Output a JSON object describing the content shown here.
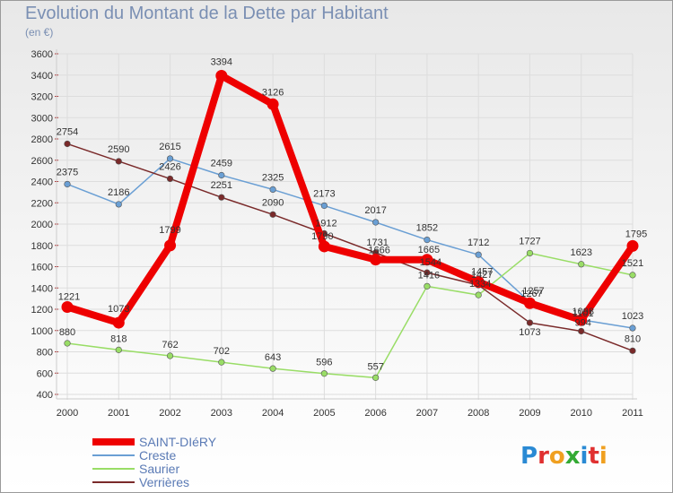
{
  "chart_data": {
    "type": "line",
    "title": "Evolution du Montant de la Dette par Habitant",
    "unit_label": "(en €)",
    "categories": [
      "2000",
      "2001",
      "2002",
      "2003",
      "2004",
      "2005",
      "2006",
      "2007",
      "2008",
      "2009",
      "2010",
      "2011"
    ],
    "ylim": [
      400,
      3600
    ],
    "yticks": [
      400,
      600,
      800,
      1000,
      1200,
      1400,
      1600,
      1800,
      2000,
      2200,
      2400,
      2600,
      2800,
      3000,
      3200,
      3400,
      3600
    ],
    "grid": true,
    "legend_position": "bottom-left",
    "series": [
      {
        "name": "SAINT-DIéRY",
        "color": "#ee0000",
        "bold": true,
        "values": [
          1221,
          1073,
          1799,
          3394,
          3126,
          1790,
          1666,
          1665,
          1457,
          1257,
          1098,
          1795
        ],
        "labels": [
          "1221",
          "1073",
          "1799",
          "3394",
          "3126",
          "1790",
          "1666",
          "1665",
          "1457",
          "1257",
          "1098",
          "1795"
        ]
      },
      {
        "name": "Creste",
        "color": "#6a9fd4",
        "bold": false,
        "values": [
          2375,
          2186,
          2615,
          2459,
          2325,
          2173,
          2017,
          1852,
          1712,
          1267,
          1101,
          1023
        ],
        "labels": [
          "2375",
          "2186",
          "2615",
          "2459",
          "2325",
          "2173",
          "2017",
          "1852",
          "1712",
          "1267",
          "1101",
          "1023"
        ]
      },
      {
        "name": "Saurier",
        "color": "#99dd66",
        "bold": false,
        "values": [
          880,
          818,
          762,
          702,
          643,
          596,
          557,
          1416,
          1334,
          1727,
          1623,
          1521
        ],
        "labels": [
          "880",
          "818",
          "762",
          "702",
          "643",
          "596",
          "557",
          "1416",
          "1334",
          "1727",
          "1623",
          "1521"
        ]
      },
      {
        "name": "Verrières",
        "color": "#7a2a2a",
        "bold": false,
        "values": [
          2754,
          2590,
          2426,
          2251,
          2090,
          1912,
          1731,
          1544,
          1427,
          1073,
          994,
          810
        ],
        "labels": [
          "2754",
          "2590",
          "2426",
          "2251",
          "2090",
          "1912",
          "1731",
          "1544",
          "1427",
          "1073",
          "994",
          "810"
        ]
      }
    ]
  },
  "branding": {
    "logo_text": "Proxiti"
  }
}
